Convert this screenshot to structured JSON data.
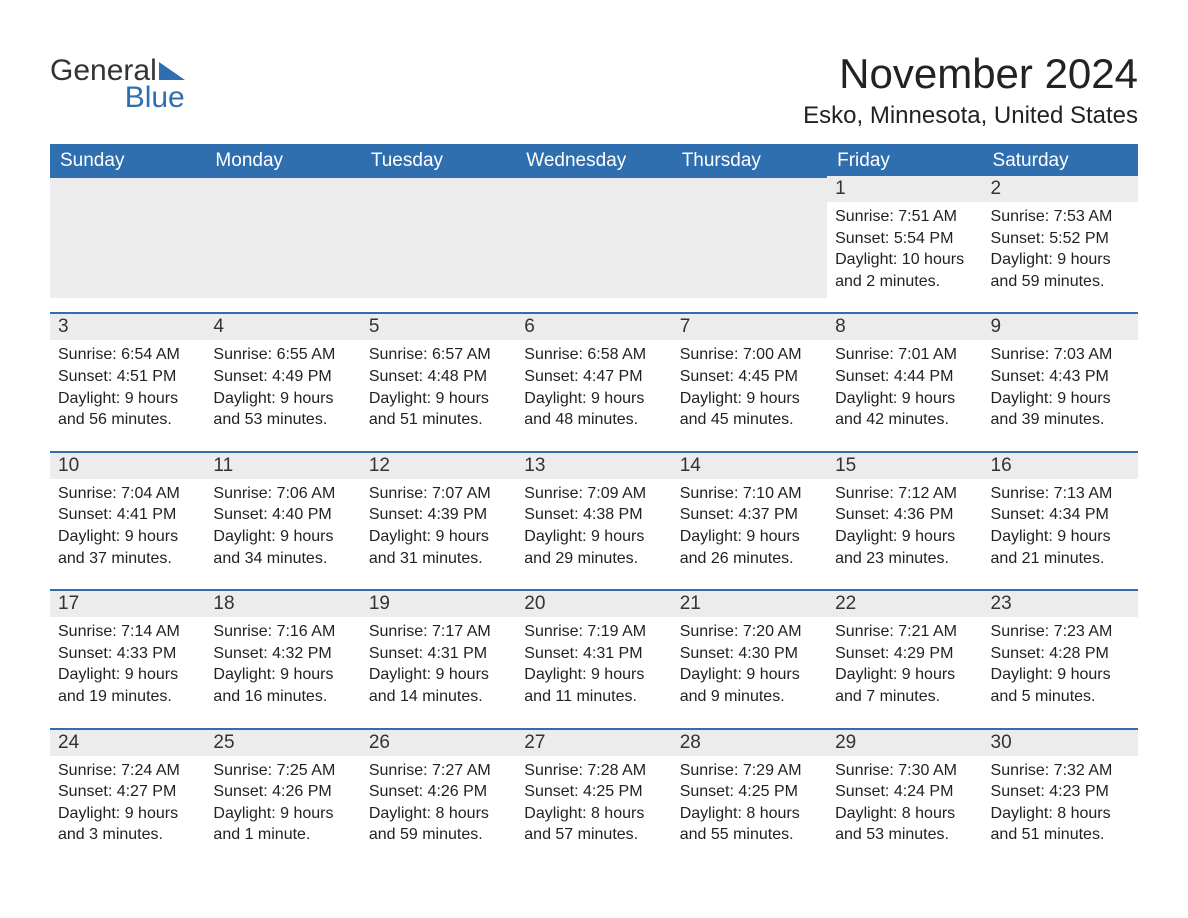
{
  "logo": {
    "line1": "General",
    "line2": "Blue",
    "accent": "#2f6fb0",
    "text_color": "#333333"
  },
  "title": "November 2024",
  "location": "Esko, Minnesota, United States",
  "colors": {
    "header_bg": "#2f6fb0",
    "header_text": "#ffffff",
    "daynum_bg": "#ececec",
    "rule": "#2f6fb0",
    "body_text": "#222222",
    "page_bg": "#ffffff"
  },
  "typography": {
    "title_pt": 42,
    "location_pt": 24,
    "dow_pt": 19,
    "daynum_pt": 19,
    "body_pt": 16
  },
  "day_headers": [
    "Sunday",
    "Monday",
    "Tuesday",
    "Wednesday",
    "Thursday",
    "Friday",
    "Saturday"
  ],
  "labels": {
    "sunrise": "Sunrise:",
    "sunset": "Sunset:",
    "daylight": "Daylight:"
  },
  "weeks": [
    [
      null,
      null,
      null,
      null,
      null,
      {
        "n": "1",
        "sr": "7:51 AM",
        "ss": "5:54 PM",
        "dl": "10 hours and 2 minutes."
      },
      {
        "n": "2",
        "sr": "7:53 AM",
        "ss": "5:52 PM",
        "dl": "9 hours and 59 minutes."
      }
    ],
    [
      {
        "n": "3",
        "sr": "6:54 AM",
        "ss": "4:51 PM",
        "dl": "9 hours and 56 minutes."
      },
      {
        "n": "4",
        "sr": "6:55 AM",
        "ss": "4:49 PM",
        "dl": "9 hours and 53 minutes."
      },
      {
        "n": "5",
        "sr": "6:57 AM",
        "ss": "4:48 PM",
        "dl": "9 hours and 51 minutes."
      },
      {
        "n": "6",
        "sr": "6:58 AM",
        "ss": "4:47 PM",
        "dl": "9 hours and 48 minutes."
      },
      {
        "n": "7",
        "sr": "7:00 AM",
        "ss": "4:45 PM",
        "dl": "9 hours and 45 minutes."
      },
      {
        "n": "8",
        "sr": "7:01 AM",
        "ss": "4:44 PM",
        "dl": "9 hours and 42 minutes."
      },
      {
        "n": "9",
        "sr": "7:03 AM",
        "ss": "4:43 PM",
        "dl": "9 hours and 39 minutes."
      }
    ],
    [
      {
        "n": "10",
        "sr": "7:04 AM",
        "ss": "4:41 PM",
        "dl": "9 hours and 37 minutes."
      },
      {
        "n": "11",
        "sr": "7:06 AM",
        "ss": "4:40 PM",
        "dl": "9 hours and 34 minutes."
      },
      {
        "n": "12",
        "sr": "7:07 AM",
        "ss": "4:39 PM",
        "dl": "9 hours and 31 minutes."
      },
      {
        "n": "13",
        "sr": "7:09 AM",
        "ss": "4:38 PM",
        "dl": "9 hours and 29 minutes."
      },
      {
        "n": "14",
        "sr": "7:10 AM",
        "ss": "4:37 PM",
        "dl": "9 hours and 26 minutes."
      },
      {
        "n": "15",
        "sr": "7:12 AM",
        "ss": "4:36 PM",
        "dl": "9 hours and 23 minutes."
      },
      {
        "n": "16",
        "sr": "7:13 AM",
        "ss": "4:34 PM",
        "dl": "9 hours and 21 minutes."
      }
    ],
    [
      {
        "n": "17",
        "sr": "7:14 AM",
        "ss": "4:33 PM",
        "dl": "9 hours and 19 minutes."
      },
      {
        "n": "18",
        "sr": "7:16 AM",
        "ss": "4:32 PM",
        "dl": "9 hours and 16 minutes."
      },
      {
        "n": "19",
        "sr": "7:17 AM",
        "ss": "4:31 PM",
        "dl": "9 hours and 14 minutes."
      },
      {
        "n": "20",
        "sr": "7:19 AM",
        "ss": "4:31 PM",
        "dl": "9 hours and 11 minutes."
      },
      {
        "n": "21",
        "sr": "7:20 AM",
        "ss": "4:30 PM",
        "dl": "9 hours and 9 minutes."
      },
      {
        "n": "22",
        "sr": "7:21 AM",
        "ss": "4:29 PM",
        "dl": "9 hours and 7 minutes."
      },
      {
        "n": "23",
        "sr": "7:23 AM",
        "ss": "4:28 PM",
        "dl": "9 hours and 5 minutes."
      }
    ],
    [
      {
        "n": "24",
        "sr": "7:24 AM",
        "ss": "4:27 PM",
        "dl": "9 hours and 3 minutes."
      },
      {
        "n": "25",
        "sr": "7:25 AM",
        "ss": "4:26 PM",
        "dl": "9 hours and 1 minute."
      },
      {
        "n": "26",
        "sr": "7:27 AM",
        "ss": "4:26 PM",
        "dl": "8 hours and 59 minutes."
      },
      {
        "n": "27",
        "sr": "7:28 AM",
        "ss": "4:25 PM",
        "dl": "8 hours and 57 minutes."
      },
      {
        "n": "28",
        "sr": "7:29 AM",
        "ss": "4:25 PM",
        "dl": "8 hours and 55 minutes."
      },
      {
        "n": "29",
        "sr": "7:30 AM",
        "ss": "4:24 PM",
        "dl": "8 hours and 53 minutes."
      },
      {
        "n": "30",
        "sr": "7:32 AM",
        "ss": "4:23 PM",
        "dl": "8 hours and 51 minutes."
      }
    ]
  ]
}
